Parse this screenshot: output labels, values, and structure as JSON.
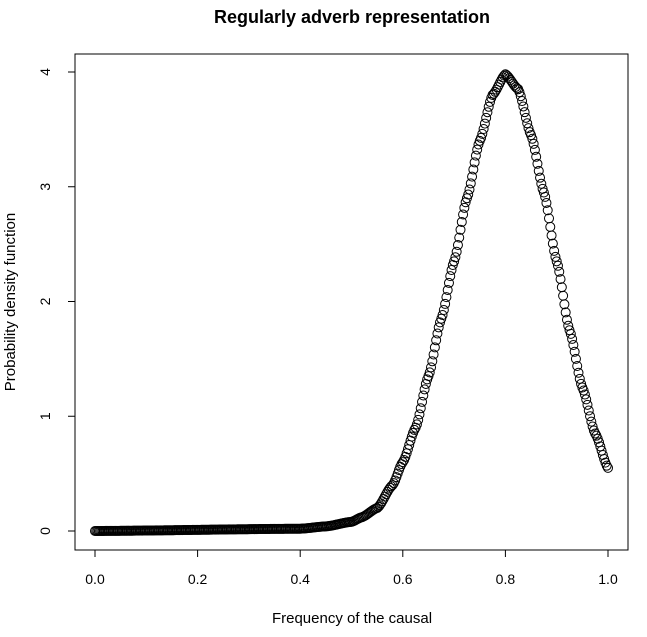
{
  "chart_data": {
    "type": "scatter",
    "title": "Regularly adverb representation",
    "xlabel": "Frequency of the causal",
    "ylabel": "Probability density function",
    "xlim": [
      0,
      1
    ],
    "ylim": [
      0,
      4
    ],
    "x_ticks": [
      0.0,
      0.2,
      0.4,
      0.6,
      0.8,
      1.0
    ],
    "x_tick_labels": [
      "0.0",
      "0.2",
      "0.4",
      "0.6",
      "0.8",
      "1.0"
    ],
    "y_ticks": [
      0,
      1,
      2,
      3,
      4
    ],
    "y_tick_labels": [
      "0",
      "1",
      "2",
      "3",
      "4"
    ],
    "grid": false,
    "marker": "open-circle",
    "series": [
      {
        "points": [
          [
            0.0,
            0.0
          ],
          [
            0.4,
            0.02
          ],
          [
            0.45,
            0.04
          ],
          [
            0.5,
            0.08
          ],
          [
            0.52,
            0.12
          ],
          [
            0.55,
            0.2
          ],
          [
            0.58,
            0.4
          ],
          [
            0.6,
            0.6
          ],
          [
            0.625,
            0.9
          ],
          [
            0.65,
            1.35
          ],
          [
            0.675,
            1.85
          ],
          [
            0.7,
            2.35
          ],
          [
            0.725,
            2.9
          ],
          [
            0.75,
            3.4
          ],
          [
            0.775,
            3.8
          ],
          [
            0.8,
            3.98
          ],
          [
            0.825,
            3.85
          ],
          [
            0.85,
            3.45
          ],
          [
            0.875,
            2.95
          ],
          [
            0.9,
            2.35
          ],
          [
            0.925,
            1.75
          ],
          [
            0.95,
            1.25
          ],
          [
            0.975,
            0.85
          ],
          [
            1.0,
            0.55
          ]
        ]
      }
    ]
  }
}
